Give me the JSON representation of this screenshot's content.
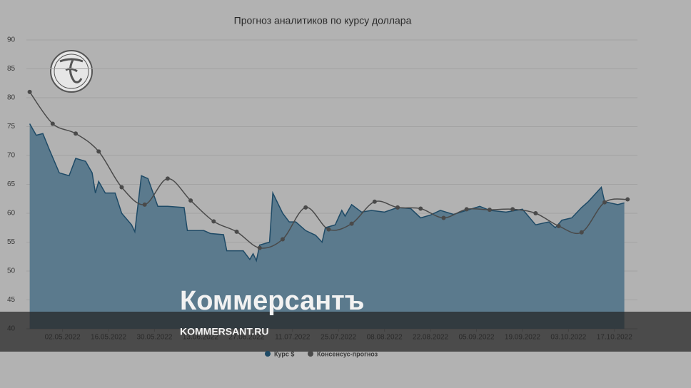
{
  "chart_data": {
    "type": "area-line",
    "title": "Прогноз аналитиков по курсу доллара",
    "series": [
      {
        "name": "Курс $",
        "color": "#1e4a66",
        "fill": "#5b7a8d",
        "kind": "area",
        "x": [
          "22.04.2022",
          "24.04.2022",
          "26.04.2022",
          "28.04.2022",
          "01.05.2022",
          "04.05.2022",
          "06.05.2022",
          "09.05.2022",
          "11.05.2022",
          "12.05.2022",
          "13.05.2022",
          "15.05.2022",
          "18.05.2022",
          "20.05.2022",
          "23.05.2022",
          "24.05.2022",
          "26.05.2022",
          "28.05.2022",
          "31.05.2022",
          "03.06.2022",
          "08.06.2022",
          "09.06.2022",
          "14.06.2022",
          "16.06.2022",
          "20.06.2022",
          "21.06.2022",
          "26.06.2022",
          "28.06.2022",
          "29.06.2022",
          "30.06.2022",
          "01.07.2022",
          "04.07.2022",
          "05.07.2022",
          "08.07.2022",
          "10.07.2022",
          "12.07.2022",
          "15.07.2022",
          "18.07.2022",
          "20.07.2022",
          "21.07.2022",
          "24.07.2022",
          "26.07.2022",
          "27.07.2022",
          "29.07.2022",
          "01.08.2022",
          "04.08.2022",
          "08.08.2022",
          "12.08.2022",
          "16.08.2022",
          "19.08.2022",
          "22.08.2022",
          "25.08.2022",
          "29.08.2022",
          "02.09.2022",
          "06.09.2022",
          "09.09.2022",
          "14.09.2022",
          "19.09.2022",
          "23.09.2022",
          "27.09.2022",
          "29.09.2022",
          "01.10.2022",
          "04.10.2022",
          "07.10.2022",
          "09.10.2022",
          "13.10.2022",
          "14.10.2022",
          "18.10.2022",
          "20.10.2022"
        ],
        "values": [
          75.5,
          73.5,
          73.8,
          71,
          67,
          66.5,
          69.5,
          69,
          67,
          63.5,
          65.5,
          63.5,
          63.5,
          60,
          58,
          56.8,
          66.5,
          66,
          61.2,
          61.2,
          61,
          57,
          57,
          56.5,
          56.3,
          53.5,
          53.5,
          52,
          53,
          51.8,
          54.5,
          55,
          63.5,
          60,
          58.5,
          58.5,
          57,
          56.2,
          55,
          57.5,
          58,
          60.5,
          59.5,
          61.5,
          60.2,
          60.5,
          60.2,
          61,
          60.8,
          59.2,
          59.7,
          60.5,
          59.8,
          60.5,
          61.2,
          60.5,
          60.2,
          60.7,
          58,
          58.5,
          57.5,
          58.8,
          59.2,
          61,
          62,
          64.5,
          62,
          61.5,
          61.8
        ]
      },
      {
        "name": "Консенсус-прогноз",
        "color": "#4a4a4a",
        "kind": "line",
        "x": [
          "22.04.2022",
          "29.04.2022",
          "06.05.2022",
          "13.05.2022",
          "20.05.2022",
          "27.05.2022",
          "03.06.2022",
          "10.06.2022",
          "17.06.2022",
          "24.06.2022",
          "01.07.2022",
          "08.07.2022",
          "15.07.2022",
          "22.07.2022",
          "29.07.2022",
          "05.08.2022",
          "12.08.2022",
          "19.08.2022",
          "26.08.2022",
          "02.09.2022",
          "09.09.2022",
          "16.09.2022",
          "23.09.2022",
          "30.09.2022",
          "07.10.2022",
          "14.10.2022",
          "21.10.2022"
        ],
        "values": [
          81,
          75.5,
          73.8,
          70.7,
          64.5,
          61.5,
          66,
          62.2,
          58.6,
          56.8,
          54,
          55.5,
          61,
          57.2,
          58.2,
          62,
          61,
          60.8,
          59.2,
          60.7,
          60.6,
          60.7,
          60,
          57.8,
          56.7,
          61.9,
          62.4
        ]
      }
    ],
    "xlim": [
      "21.04.2022",
      "24.10.2022"
    ],
    "xticks": [
      "02.05.2022",
      "16.05.2022",
      "30.05.2022",
      "13.06.2022",
      "27.06.2022",
      "11.07.2022",
      "25.07.2022",
      "08.08.2022",
      "22.08.2022",
      "05.09.2022",
      "19.09.2022",
      "03.10.2022",
      "17.10.2022"
    ],
    "ylim": [
      40,
      90
    ],
    "yticks": [
      40,
      45,
      50,
      55,
      60,
      65,
      70,
      75,
      80,
      85,
      90
    ],
    "grid": true
  },
  "overlay": {
    "brand": "Коммерсантъ",
    "url": "KOMMERSANT.RU"
  }
}
